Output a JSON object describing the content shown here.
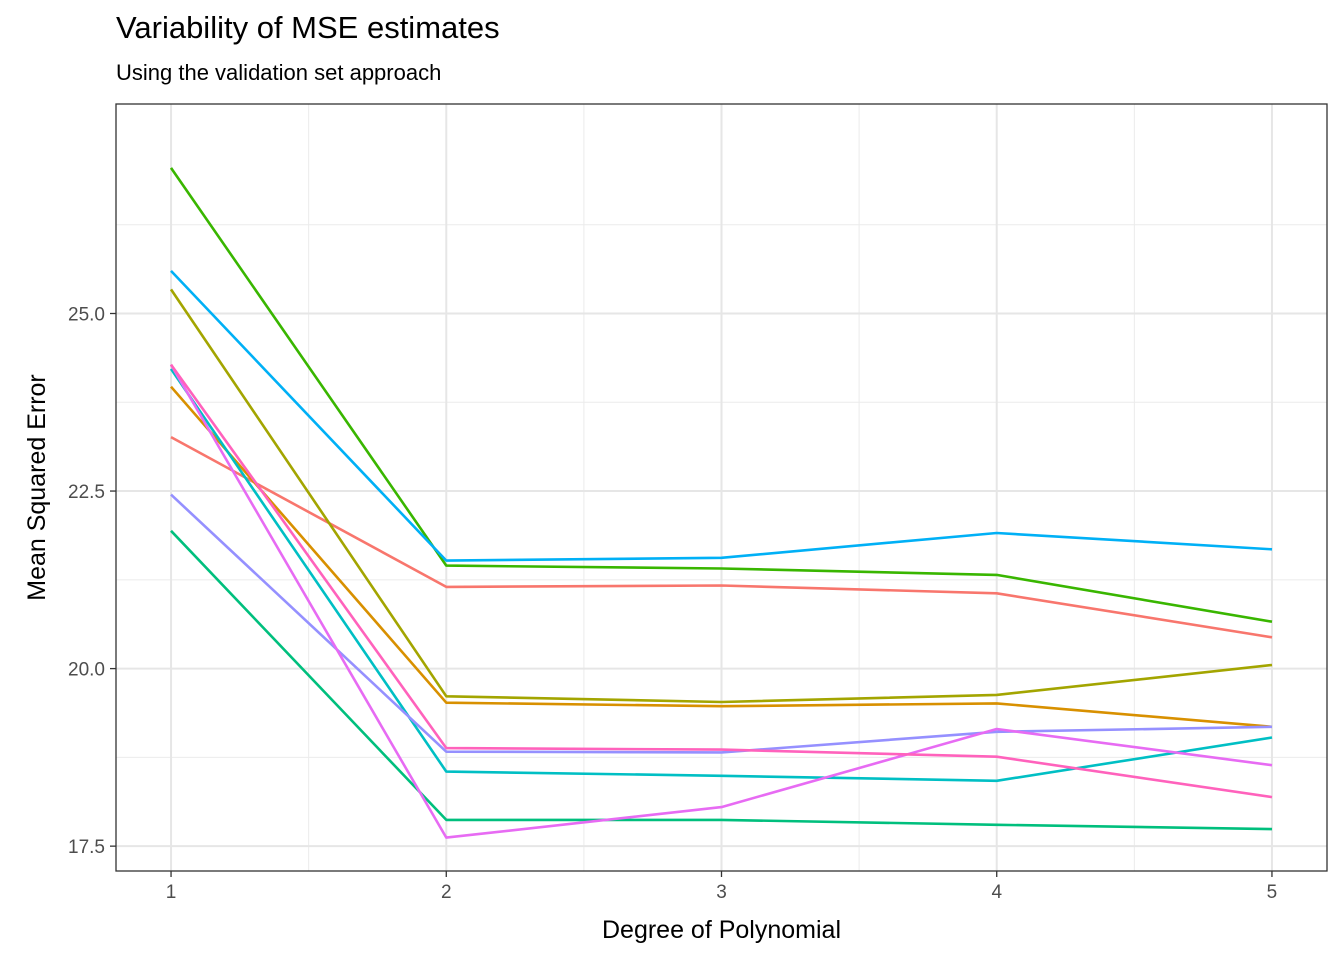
{
  "chart_data": {
    "type": "line",
    "title": "Variability of MSE estimates",
    "subtitle": "Using the validation set approach",
    "xlabel": "Degree of Polynomial",
    "ylabel": "Mean Squared Error",
    "x": [
      1,
      2,
      3,
      4,
      5
    ],
    "xticks": [
      "1",
      "2",
      "3",
      "4",
      "5"
    ],
    "yticks": [
      17.5,
      20.0,
      22.5,
      25.0
    ],
    "ytick_labels": [
      "17.5",
      "20.0",
      "22.5",
      "25.0"
    ],
    "xlim": [
      0.8,
      5.2
    ],
    "ylim": [
      17.15,
      27.95
    ],
    "grid": true,
    "legend": "none",
    "series": [
      {
        "color": "#F8766D",
        "values": [
          23.26,
          21.15,
          21.17,
          21.06,
          20.44
        ]
      },
      {
        "color": "#D89000",
        "values": [
          23.97,
          19.52,
          19.47,
          19.51,
          19.18
        ]
      },
      {
        "color": "#A3A500",
        "values": [
          25.34,
          19.61,
          19.53,
          19.63,
          20.05
        ]
      },
      {
        "color": "#39B600",
        "values": [
          27.05,
          21.45,
          21.41,
          21.32,
          20.66
        ]
      },
      {
        "color": "#00BF7D",
        "values": [
          21.94,
          17.87,
          17.87,
          17.8,
          17.74
        ]
      },
      {
        "color": "#00BFC4",
        "values": [
          24.22,
          18.55,
          18.49,
          18.42,
          19.03
        ]
      },
      {
        "color": "#00B0F6",
        "values": [
          25.6,
          21.52,
          21.56,
          21.91,
          21.68
        ]
      },
      {
        "color": "#9590FF",
        "values": [
          22.45,
          18.83,
          18.82,
          19.11,
          19.18
        ]
      },
      {
        "color": "#E76BF3",
        "values": [
          24.28,
          17.62,
          18.05,
          19.15,
          18.64
        ]
      },
      {
        "color": "#FF62BC",
        "values": [
          24.28,
          18.88,
          18.86,
          18.76,
          18.19
        ]
      }
    ]
  }
}
